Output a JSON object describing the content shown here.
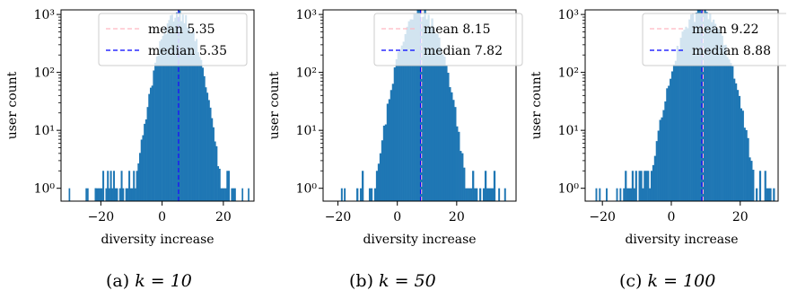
{
  "chart_data": [
    {
      "type": "bar",
      "subplot": "histogram",
      "caption": "(a) k = 10",
      "caption_prefix": "(a)",
      "caption_math": "k = 10",
      "xlabel": "diversity increase",
      "ylabel": "user count",
      "yscale": "log",
      "xlim": [
        -33,
        30
      ],
      "ylim": [
        0.6,
        1200
      ],
      "xticks": [
        -20,
        0,
        20
      ],
      "xtick_labels": [
        "−20",
        "0",
        "20"
      ],
      "yticks": [
        1,
        10,
        100,
        1000
      ],
      "ytick_labels": [
        "10⁰",
        "10¹",
        "10²",
        "10³"
      ],
      "grid": false,
      "legend_position": "top-right",
      "bar_color": "#1f77b4",
      "bin_width": 0.5,
      "center": 5.35,
      "spread": 3.75,
      "peak": 1050,
      "range": [
        -22,
        24
      ],
      "outliers": [
        {
          "x": -30.5,
          "y": 1
        },
        {
          "x": -25,
          "y": 1
        },
        {
          "x": -24.5,
          "y": 1
        },
        {
          "x": -22,
          "y": 1
        },
        {
          "x": 26,
          "y": 1
        },
        {
          "x": 28,
          "y": 1
        }
      ],
      "lines": [
        {
          "name": "mean",
          "value": 5.35,
          "label": "mean 5.35",
          "color": "#ffb6c1"
        },
        {
          "name": "median",
          "value": 5.35,
          "label": "median 5.35",
          "color": "#0000ff"
        }
      ]
    },
    {
      "type": "bar",
      "subplot": "histogram",
      "caption": "(b) k = 50",
      "caption_prefix": "(b)",
      "caption_math": "k = 50",
      "xlabel": "diversity increase",
      "ylabel": "user count",
      "yscale": "log",
      "xlim": [
        -25,
        40
      ],
      "ylim": [
        0.6,
        1200
      ],
      "xticks": [
        -20,
        0,
        20
      ],
      "xtick_labels": [
        "−20",
        "0",
        "20"
      ],
      "yticks": [
        1,
        10,
        100,
        1000
      ],
      "ytick_labels": [
        "10⁰",
        "10¹",
        "10²",
        "10³"
      ],
      "grid": false,
      "legend_position": "top-right",
      "bar_color": "#1f77b4",
      "bin_width": 0.6,
      "center": 8.0,
      "spread": 4.1,
      "peak": 1100,
      "range": [
        -15,
        33
      ],
      "outliers": [
        {
          "x": -19,
          "y": 1
        },
        {
          "x": -18,
          "y": 1
        },
        {
          "x": -12,
          "y": 1
        },
        {
          "x": 34,
          "y": 1
        },
        {
          "x": 36,
          "y": 1
        }
      ],
      "lines": [
        {
          "name": "mean",
          "value": 8.15,
          "label": "mean 8.15",
          "color": "#ffb6c1"
        },
        {
          "name": "median",
          "value": 7.82,
          "label": "median 7.82",
          "color": "#0000ff"
        }
      ]
    },
    {
      "type": "bar",
      "subplot": "histogram",
      "caption": "(c) k = 100",
      "caption_prefix": "(c)",
      "caption_math": "k = 100",
      "xlabel": "diversity increase",
      "ylabel": "user count",
      "yscale": "log",
      "xlim": [
        -25,
        31
      ],
      "ylim": [
        0.6,
        1200
      ],
      "xticks": [
        -20,
        0,
        20
      ],
      "xtick_labels": [
        "−20",
        "0",
        "20"
      ],
      "yticks": [
        1,
        10,
        100,
        1000
      ],
      "ytick_labels": [
        "10⁰",
        "10¹",
        "10²",
        "10³"
      ],
      "grid": false,
      "legend_position": "top-right",
      "bar_color": "#1f77b4",
      "bin_width": 0.5,
      "center": 9.0,
      "spread": 4.1,
      "peak": 1100,
      "range": [
        -14,
        30
      ],
      "outliers": [
        {
          "x": -22,
          "y": 1
        },
        {
          "x": -21,
          "y": 1
        },
        {
          "x": -19,
          "y": 1
        },
        {
          "x": -16,
          "y": 1
        },
        {
          "x": -15,
          "y": 1
        }
      ],
      "lines": [
        {
          "name": "mean",
          "value": 9.22,
          "label": "mean 9.22",
          "color": "#ffb6c1"
        },
        {
          "name": "median",
          "value": 8.88,
          "label": "median 8.88",
          "color": "#0000ff"
        }
      ]
    }
  ]
}
